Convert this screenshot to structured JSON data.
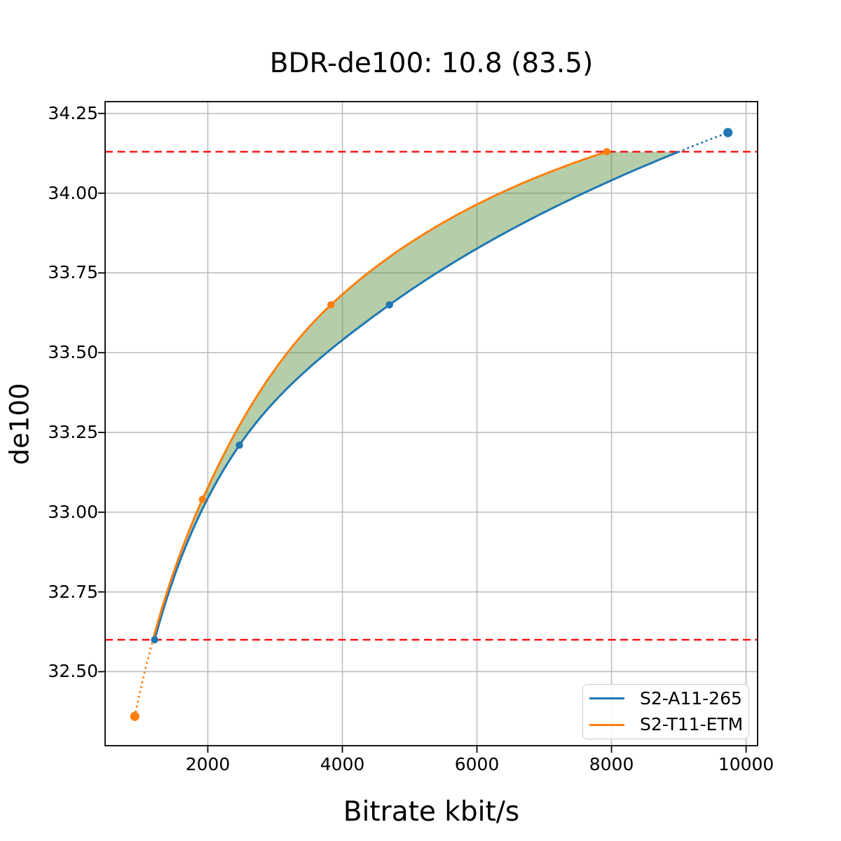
{
  "chart_data": {
    "type": "line",
    "title": "BDR-de100: 10.8 (83.5)",
    "xlabel": "Bitrate kbit/s",
    "ylabel": "de100",
    "xlim": [
      474,
      10171
    ],
    "ylim": [
      32.268,
      34.287
    ],
    "grid": true,
    "grid_color": "#b9b9b9",
    "x_ticks": [
      {
        "value": 2000,
        "label": "2000"
      },
      {
        "value": 4000,
        "label": "4000"
      },
      {
        "value": 6000,
        "label": "6000"
      },
      {
        "value": 8000,
        "label": "8000"
      },
      {
        "value": 10000,
        "label": "10000"
      }
    ],
    "y_ticks": [
      {
        "value": 32.5,
        "label": "32.50"
      },
      {
        "value": 32.75,
        "label": "32.75"
      },
      {
        "value": 33.0,
        "label": "33.00"
      },
      {
        "value": 33.25,
        "label": "33.25"
      },
      {
        "value": 33.5,
        "label": "33.50"
      },
      {
        "value": 33.75,
        "label": "33.75"
      },
      {
        "value": 34.0,
        "label": "34.00"
      },
      {
        "value": 34.25,
        "label": "34.25"
      }
    ],
    "series": [
      {
        "name": "S2-A11-265",
        "color": "#1f77b4",
        "x": [
          1210,
          2470,
          4700,
          9730
        ],
        "y": [
          32.6,
          33.21,
          33.65,
          34.19
        ]
      },
      {
        "name": "S2-T11-ETM",
        "color": "#ff7f0e",
        "x": [
          915,
          1920,
          3830,
          7930
        ],
        "y": [
          32.36,
          33.04,
          33.65,
          34.13
        ]
      }
    ],
    "quality_bounds": {
      "lower": 32.6,
      "upper": 34.13,
      "line_color": "#ff0000",
      "line_style": "dashed"
    },
    "fill_between": {
      "color": "#4e8a33",
      "opacity": 0.42
    },
    "legend": {
      "position": "lower right",
      "entries": [
        "S2-A11-265",
        "S2-T11-ETM"
      ]
    }
  }
}
